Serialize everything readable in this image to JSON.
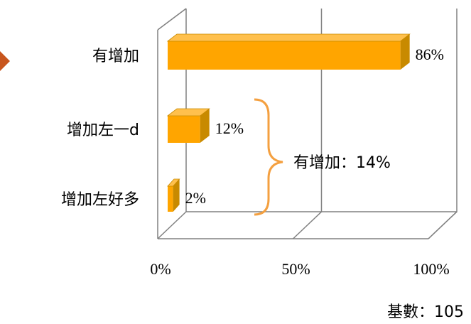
{
  "chart_data": {
    "type": "bar",
    "orientation": "horizontal",
    "categories": [
      "有增加",
      "增加左一d",
      "增加左好多"
    ],
    "values": [
      86,
      12,
      2
    ],
    "value_labels": [
      "86%",
      "12%",
      "2%"
    ],
    "xlim": [
      0,
      100
    ],
    "x_ticks": [
      "0%",
      "50%",
      "100%"
    ],
    "grid": true,
    "bar_color": "#FFA500",
    "bar_dark": "#C88A00",
    "annotation": {
      "text": "有增加：14%",
      "groups": [
        "增加左一d",
        "增加左好多"
      ],
      "brace_color": "#F4A040"
    },
    "base_note": "基數：105"
  },
  "decor": {
    "arrow_color": "#C8561E"
  }
}
